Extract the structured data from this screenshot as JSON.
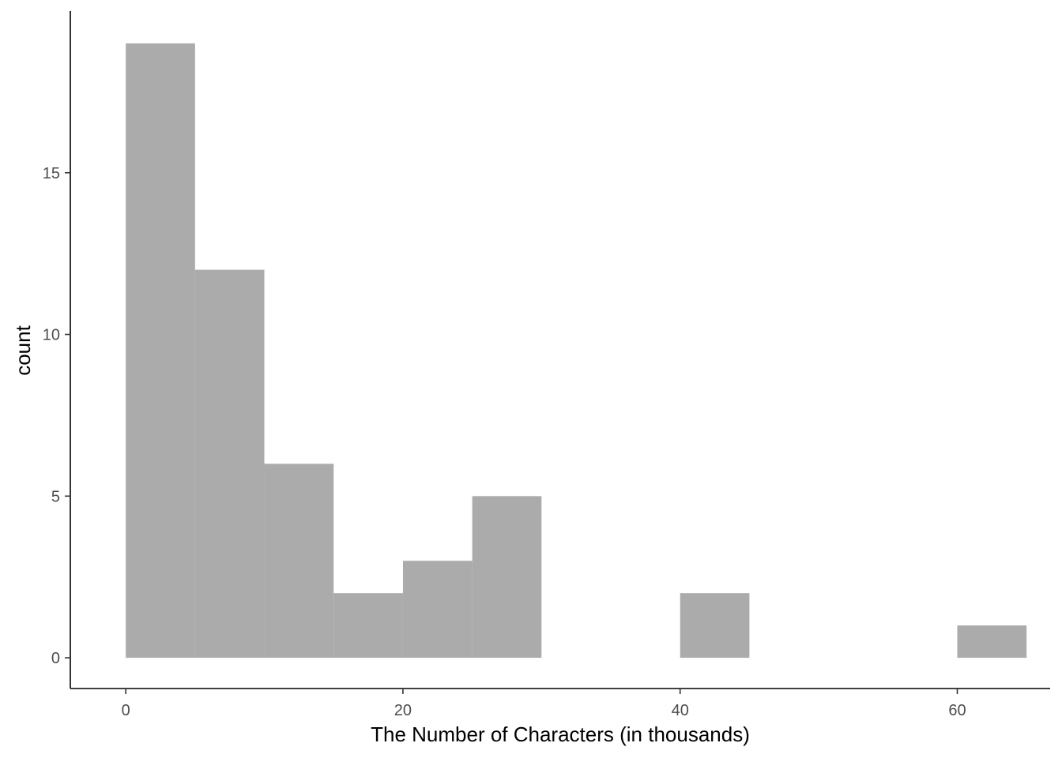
{
  "chart_data": {
    "type": "bar",
    "subtype": "histogram",
    "title": "",
    "xlabel": "The Number of Characters (in thousands)",
    "ylabel": "count",
    "xlim": [
      -4,
      66.7
    ],
    "ylim": [
      -0.95,
      20
    ],
    "x_ticks": [
      0,
      20,
      40,
      60
    ],
    "y_ticks": [
      0,
      5,
      10,
      15
    ],
    "bin_width": 5,
    "bins": [
      {
        "x0": 0,
        "x1": 5,
        "count": 19
      },
      {
        "x0": 5,
        "x1": 10,
        "count": 12
      },
      {
        "x0": 10,
        "x1": 15,
        "count": 6
      },
      {
        "x0": 15,
        "x1": 20,
        "count": 2
      },
      {
        "x0": 20,
        "x1": 25,
        "count": 3
      },
      {
        "x0": 25,
        "x1": 30,
        "count": 5
      },
      {
        "x0": 30,
        "x1": 35,
        "count": 0
      },
      {
        "x0": 35,
        "x1": 40,
        "count": 0
      },
      {
        "x0": 40,
        "x1": 45,
        "count": 2
      },
      {
        "x0": 45,
        "x1": 50,
        "count": 0
      },
      {
        "x0": 50,
        "x1": 55,
        "count": 0
      },
      {
        "x0": 55,
        "x1": 60,
        "count": 0
      },
      {
        "x0": 60,
        "x1": 65,
        "count": 1
      }
    ],
    "grid": false,
    "legend": "none",
    "bar_color": "#ababab",
    "axis_color": "#000000",
    "tick_label_color": "#4d4d4d"
  }
}
